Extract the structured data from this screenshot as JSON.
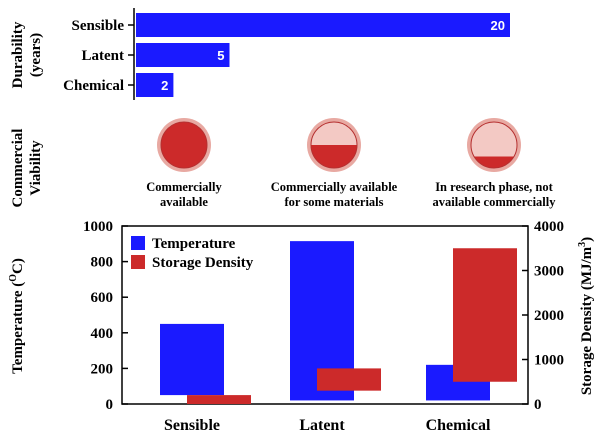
{
  "chart_data": [
    {
      "type": "bar",
      "orientation": "horizontal",
      "ylabel": "Durability (years)",
      "ylabel_lines": [
        "Durability",
        "(years)"
      ],
      "categories": [
        "Sensible",
        "Latent",
        "Chemical"
      ],
      "values": [
        20,
        5,
        2
      ],
      "xlim": [
        0,
        20
      ],
      "data_labels": true,
      "bar_color": "#1a1aff",
      "grid": false
    },
    {
      "type": "other",
      "ylabel": "Commercial Viability",
      "ylabel_lines": [
        "Commercial",
        "Viability"
      ],
      "items": [
        {
          "category": "Sensible",
          "fill_fraction": 1.0,
          "caption_lines": [
            "Commercially",
            "available"
          ]
        },
        {
          "category": "Latent",
          "fill_fraction": 0.5,
          "caption_lines": [
            "Commercially available",
            "for some materials"
          ]
        },
        {
          "category": "Chemical",
          "fill_fraction": 0.25,
          "caption_lines": [
            "In research phase, not",
            "available commercially"
          ]
        }
      ],
      "disk_color": "#cc2a2a",
      "ring_color": "#e8a9a2"
    },
    {
      "type": "bar",
      "categories": [
        "Sensible",
        "Latent",
        "Chemical"
      ],
      "series": [
        {
          "name": "Temperature",
          "axis": "left",
          "color": "#1a1aff",
          "ranges": [
            [
              50,
              450
            ],
            [
              20,
              915
            ],
            [
              20,
              220
            ]
          ]
        },
        {
          "name": "Storage Density",
          "axis": "right",
          "color": "#cc2a2a",
          "ranges": [
            [
              0,
              200
            ],
            [
              300,
              800
            ],
            [
              500,
              3500
            ]
          ]
        }
      ],
      "ylabel_left": "Temperature (",
      "ylabel_left_sup": "O",
      "ylabel_left_tail": "C)",
      "ylabel_right": "Storage Density (MJ/m",
      "ylabel_right_sup": "3",
      "ylabel_right_tail": ")",
      "ylim_left": [
        0,
        1000
      ],
      "yticks_left": [
        0,
        200,
        400,
        600,
        800,
        1000
      ],
      "ylim_right": [
        0,
        4000
      ],
      "yticks_right": [
        0,
        1000,
        2000,
        3000,
        4000
      ],
      "legend_position": "top-left",
      "grid": false
    }
  ]
}
